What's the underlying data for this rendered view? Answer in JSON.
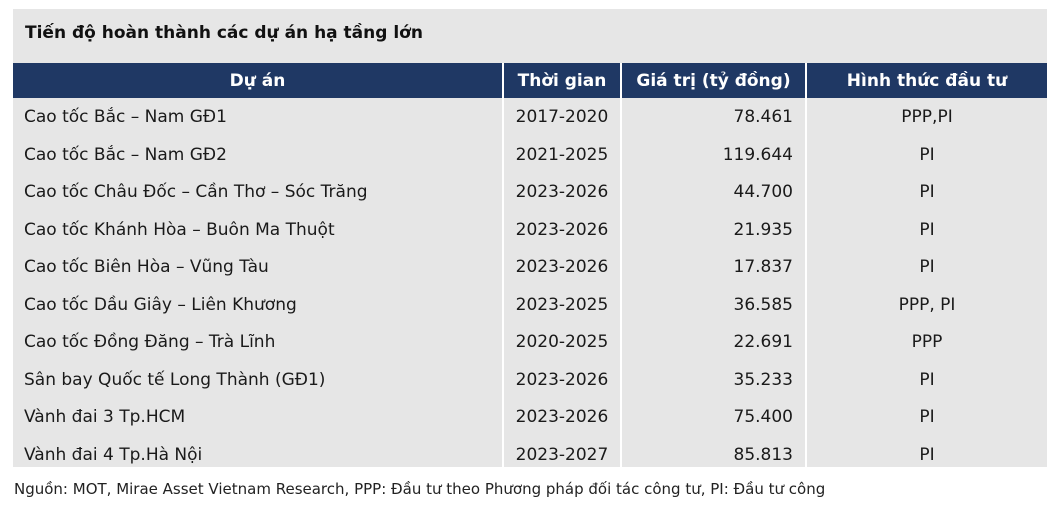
{
  "title": "Tiến độ hoàn thành các dự án hạ tầng lớn",
  "headers": [
    "Dự án",
    "Thời gian",
    "Giá trị (tỷ đồng)",
    "Hình thức đầu tư"
  ],
  "rows": [
    [
      "Cao tốc Bắc – Nam GĐ1",
      "2017-2020",
      "78.461",
      "PPP,PI"
    ],
    [
      "Cao tốc Bắc – Nam GĐ2",
      "2021-2025",
      "119.644",
      "PI"
    ],
    [
      "Cao tốc Châu Đốc – Cần Thơ – Sóc Trăng",
      "2023-2026",
      "44.700",
      "PI"
    ],
    [
      "Cao tốc Khánh Hòa – Buôn Ma Thuột",
      "2023-2026",
      "21.935",
      "PI"
    ],
    [
      "Cao tốc Biên Hòa – Vũng Tàu",
      "2023-2026",
      "17.837",
      "PI"
    ],
    [
      "Cao tốc Dầu Giây – Liên Khương",
      "2023-2025",
      "36.585",
      "PPP, PI"
    ],
    [
      "Cao tốc Đồng Đăng – Trà Lĩnh",
      "2020-2025",
      "22.691",
      "PPP"
    ],
    [
      "Sân bay Quốc tế Long Thành (GĐ1)",
      "2023-2026",
      "35.233",
      "PI"
    ],
    [
      "Vành đai 3 Tp.HCM",
      "2023-2026",
      "75.400",
      "PI"
    ],
    [
      "Vành đai 4 Tp.Hà Nội",
      "2023-2027",
      "85.813",
      "PI"
    ]
  ],
  "source": "Nguồn: MOT, Mirae Asset Vietnam Research, PPP: Đầu tư theo Phương pháp đối tác công tư, PI: Đầu tư công",
  "colors": {
    "header_bg": "#1f3864",
    "panel_bg": "#e6e6e6"
  }
}
